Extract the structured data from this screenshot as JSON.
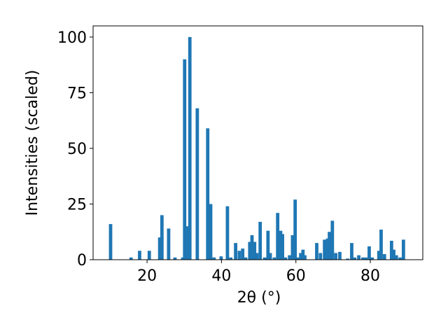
{
  "chart_data": {
    "type": "bar",
    "x_label": "2θ (°)",
    "y_label": "Intensities (scaled)",
    "x": [
      10.2,
      15.7,
      18,
      20.6,
      23.4,
      24,
      25.8,
      27.5,
      29.6,
      30.1,
      30.9,
      31.5,
      33.5,
      36.3,
      37.1,
      38,
      39.9,
      41.6,
      42.5,
      43.8,
      44.8,
      45.7,
      46.5,
      47.6,
      48.2,
      48.9,
      49.5,
      50.4,
      51.6,
      52.5,
      53.1,
      54.2,
      55.1,
      55.9,
      56.4,
      57.2,
      58.3,
      59.1,
      59.8,
      60.6,
      61.3,
      61.9,
      62.4,
      65.6,
      66.6,
      67.7,
      68.5,
      69,
      69.8,
      70.7,
      71.8,
      73.9,
      75,
      75.8,
      76.9,
      78,
      78.8,
      79.7,
      80.5,
      82.3,
      82.9,
      83.8,
      85.7,
      86.3,
      87,
      88,
      88.9
    ],
    "values": [
      16,
      1,
      4,
      4,
      10,
      20,
      14,
      1,
      1,
      90,
      15,
      100,
      68,
      59,
      25,
      1,
      1.5,
      24,
      1,
      7.5,
      4,
      5,
      1,
      8,
      11,
      8,
      3,
      17,
      1,
      13,
      3,
      1,
      21,
      13,
      11.5,
      1,
      2,
      11,
      27,
      1,
      3,
      4.5,
      2,
      7.5,
      3,
      9,
      9.5,
      12.5,
      17.5,
      3,
      3.5,
      0.5,
      7.5,
      1,
      2,
      1,
      1,
      6,
      1,
      4,
      13.5,
      2.5,
      8.5,
      4.5,
      2,
      1,
      9
    ],
    "color": "#1f77b4",
    "xlim": [
      5.5,
      94.1
    ],
    "ylim": [
      0,
      105
    ],
    "xticks": [
      20,
      40,
      60,
      80
    ],
    "yticks": [
      0,
      25,
      50,
      75,
      100
    ]
  }
}
